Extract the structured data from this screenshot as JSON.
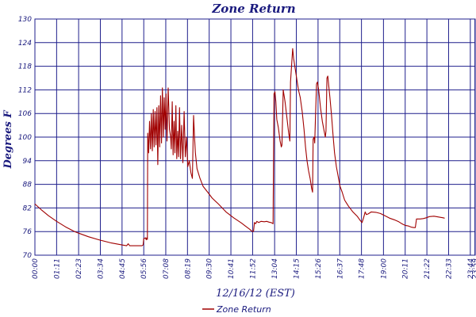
{
  "chart_data": {
    "type": "line",
    "title": "Zone Return",
    "ylabel": "Degrees F",
    "xlabel": "12/16/12 (EST)",
    "ylim": [
      70,
      130
    ],
    "yticks": [
      70,
      76,
      82,
      88,
      94,
      100,
      106,
      112,
      118,
      124,
      130
    ],
    "xlim": [
      0,
      1440
    ],
    "xticks": [
      {
        "x": 0,
        "label": "00:00"
      },
      {
        "x": 71,
        "label": "01:11"
      },
      {
        "x": 143,
        "label": "02:23"
      },
      {
        "x": 214,
        "label": "03:34"
      },
      {
        "x": 285,
        "label": "04:45"
      },
      {
        "x": 356,
        "label": "05:56"
      },
      {
        "x": 428,
        "label": "07:08"
      },
      {
        "x": 499,
        "label": "08:19"
      },
      {
        "x": 570,
        "label": "09:30"
      },
      {
        "x": 641,
        "label": "10:41"
      },
      {
        "x": 712,
        "label": "11:52"
      },
      {
        "x": 784,
        "label": "13:04"
      },
      {
        "x": 855,
        "label": "14:15"
      },
      {
        "x": 926,
        "label": "15:26"
      },
      {
        "x": 997,
        "label": "16:37"
      },
      {
        "x": 1068,
        "label": "17:48"
      },
      {
        "x": 1140,
        "label": "19:00"
      },
      {
        "x": 1211,
        "label": "20:11"
      },
      {
        "x": 1282,
        "label": "21:22"
      },
      {
        "x": 1353,
        "label": "22:33"
      },
      {
        "x": 1424,
        "label": "23:44"
      },
      {
        "x": 1439,
        "label": "23:59"
      }
    ],
    "grid": true,
    "legend": "bottom",
    "series": [
      {
        "name": "Zone Return",
        "color": "#a00000",
        "points": [
          [
            0,
            83.0
          ],
          [
            20,
            81.6
          ],
          [
            45,
            80.0
          ],
          [
            71,
            78.6
          ],
          [
            100,
            77.2
          ],
          [
            130,
            76.0
          ],
          [
            143,
            75.6
          ],
          [
            175,
            74.7
          ],
          [
            214,
            73.8
          ],
          [
            250,
            73.1
          ],
          [
            285,
            72.6
          ],
          [
            300,
            72.4
          ],
          [
            305,
            72.9
          ],
          [
            310,
            72.4
          ],
          [
            330,
            72.4
          ],
          [
            350,
            72.4
          ],
          [
            354,
            72.6
          ],
          [
            356,
            74.2
          ],
          [
            362,
            74.4
          ],
          [
            364,
            73.9
          ],
          [
            366,
            74.4
          ],
          [
            368,
            74.0
          ],
          [
            369,
            101.0
          ],
          [
            372,
            96.0
          ],
          [
            375,
            104.0
          ],
          [
            378,
            97.0
          ],
          [
            381,
            106.0
          ],
          [
            384,
            96.5
          ],
          [
            387,
            107.0
          ],
          [
            390,
            97.5
          ],
          [
            393,
            106.5
          ],
          [
            396,
            98.0
          ],
          [
            399,
            107.5
          ],
          [
            402,
            93.0
          ],
          [
            405,
            108.0
          ],
          [
            408,
            97.5
          ],
          [
            411,
            110.5
          ],
          [
            414,
            98.5
          ],
          [
            417,
            112.5
          ],
          [
            420,
            100.0
          ],
          [
            423,
            110.0
          ],
          [
            426,
            102.0
          ],
          [
            429,
            111.0
          ],
          [
            432,
            99.0
          ],
          [
            436,
            112.5
          ],
          [
            440,
            102.0
          ],
          [
            444,
            100.0
          ],
          [
            446,
            97.0
          ],
          [
            449,
            109.0
          ],
          [
            452,
            95.5
          ],
          [
            455,
            104.0
          ],
          [
            458,
            96.0
          ],
          [
            461,
            108.0
          ],
          [
            464,
            94.5
          ],
          [
            467,
            101.5
          ],
          [
            470,
            95.0
          ],
          [
            473,
            107.5
          ],
          [
            476,
            94.5
          ],
          [
            480,
            103.0
          ],
          [
            484,
            93.5
          ],
          [
            488,
            106.5
          ],
          [
            492,
            95.0
          ],
          [
            496,
            100.0
          ],
          [
            500,
            92.5
          ],
          [
            505,
            94.0
          ],
          [
            510,
            91.0
          ],
          [
            515,
            89.5
          ],
          [
            519,
            105.5
          ],
          [
            522,
            100.0
          ],
          [
            525,
            96.0
          ],
          [
            530,
            92.0
          ],
          [
            540,
            89.5
          ],
          [
            550,
            87.5
          ],
          [
            565,
            86.0
          ],
          [
            580,
            84.5
          ],
          [
            600,
            83.0
          ],
          [
            625,
            81.0
          ],
          [
            650,
            79.5
          ],
          [
            675,
            78.2
          ],
          [
            690,
            77.3
          ],
          [
            702,
            76.6
          ],
          [
            708,
            76.2
          ],
          [
            712,
            76.0
          ],
          [
            715,
            76.1
          ],
          [
            718,
            78.3
          ],
          [
            722,
            78.0
          ],
          [
            726,
            78.6
          ],
          [
            732,
            78.3
          ],
          [
            740,
            78.6
          ],
          [
            750,
            78.5
          ],
          [
            758,
            78.6
          ],
          [
            766,
            78.4
          ],
          [
            772,
            78.3
          ],
          [
            777,
            78.1
          ],
          [
            779,
            78.0
          ],
          [
            782,
            111.0
          ],
          [
            785,
            111.5
          ],
          [
            788,
            109.0
          ],
          [
            791,
            104.5
          ],
          [
            796,
            102.5
          ],
          [
            802,
            99.0
          ],
          [
            806,
            97.5
          ],
          [
            808,
            98.0
          ],
          [
            812,
            112.0
          ],
          [
            818,
            109.0
          ],
          [
            824,
            105.0
          ],
          [
            830,
            101.0
          ],
          [
            834,
            99.0
          ],
          [
            836,
            114.0
          ],
          [
            840,
            119.0
          ],
          [
            843,
            122.5
          ],
          [
            846,
            120.0
          ],
          [
            850,
            118.0
          ],
          [
            856,
            115.0
          ],
          [
            862,
            112.0
          ],
          [
            868,
            110.0
          ],
          [
            874,
            106.5
          ],
          [
            880,
            102.0
          ],
          [
            885,
            97.5
          ],
          [
            890,
            94.0
          ],
          [
            895,
            91.5
          ],
          [
            900,
            89.5
          ],
          [
            905,
            87.0
          ],
          [
            908,
            86.0
          ],
          [
            910,
            99.5
          ],
          [
            913,
            100.0
          ],
          [
            915,
            98.5
          ],
          [
            918,
            106.0
          ],
          [
            921,
            113.5
          ],
          [
            924,
            114.0
          ],
          [
            928,
            112.0
          ],
          [
            934,
            107.5
          ],
          [
            940,
            104.0
          ],
          [
            946,
            101.5
          ],
          [
            950,
            100.0
          ],
          [
            952,
            101.5
          ],
          [
            955,
            115.0
          ],
          [
            958,
            115.5
          ],
          [
            961,
            113.0
          ],
          [
            965,
            110.0
          ],
          [
            970,
            105.5
          ],
          [
            975,
            100.5
          ],
          [
            980,
            96.0
          ],
          [
            986,
            92.5
          ],
          [
            992,
            90.0
          ],
          [
            998,
            87.5
          ],
          [
            1005,
            86.0
          ],
          [
            1013,
            84.0
          ],
          [
            1025,
            82.5
          ],
          [
            1040,
            81.0
          ],
          [
            1055,
            79.8
          ],
          [
            1065,
            78.7
          ],
          [
            1070,
            78.3
          ],
          [
            1075,
            79.5
          ],
          [
            1080,
            81.0
          ],
          [
            1084,
            80.3
          ],
          [
            1090,
            80.5
          ],
          [
            1100,
            81.0
          ],
          [
            1115,
            80.9
          ],
          [
            1130,
            80.6
          ],
          [
            1145,
            80.0
          ],
          [
            1160,
            79.4
          ],
          [
            1175,
            79.0
          ],
          [
            1190,
            78.5
          ],
          [
            1200,
            78.0
          ],
          [
            1210,
            77.6
          ],
          [
            1222,
            77.4
          ],
          [
            1232,
            77.1
          ],
          [
            1240,
            77.0
          ],
          [
            1244,
            77.0
          ],
          [
            1248,
            79.2
          ],
          [
            1260,
            79.2
          ],
          [
            1270,
            79.3
          ],
          [
            1280,
            79.5
          ],
          [
            1290,
            79.8
          ],
          [
            1305,
            79.9
          ],
          [
            1320,
            79.7
          ],
          [
            1335,
            79.5
          ],
          [
            1340,
            79.4
          ]
        ]
      }
    ]
  }
}
